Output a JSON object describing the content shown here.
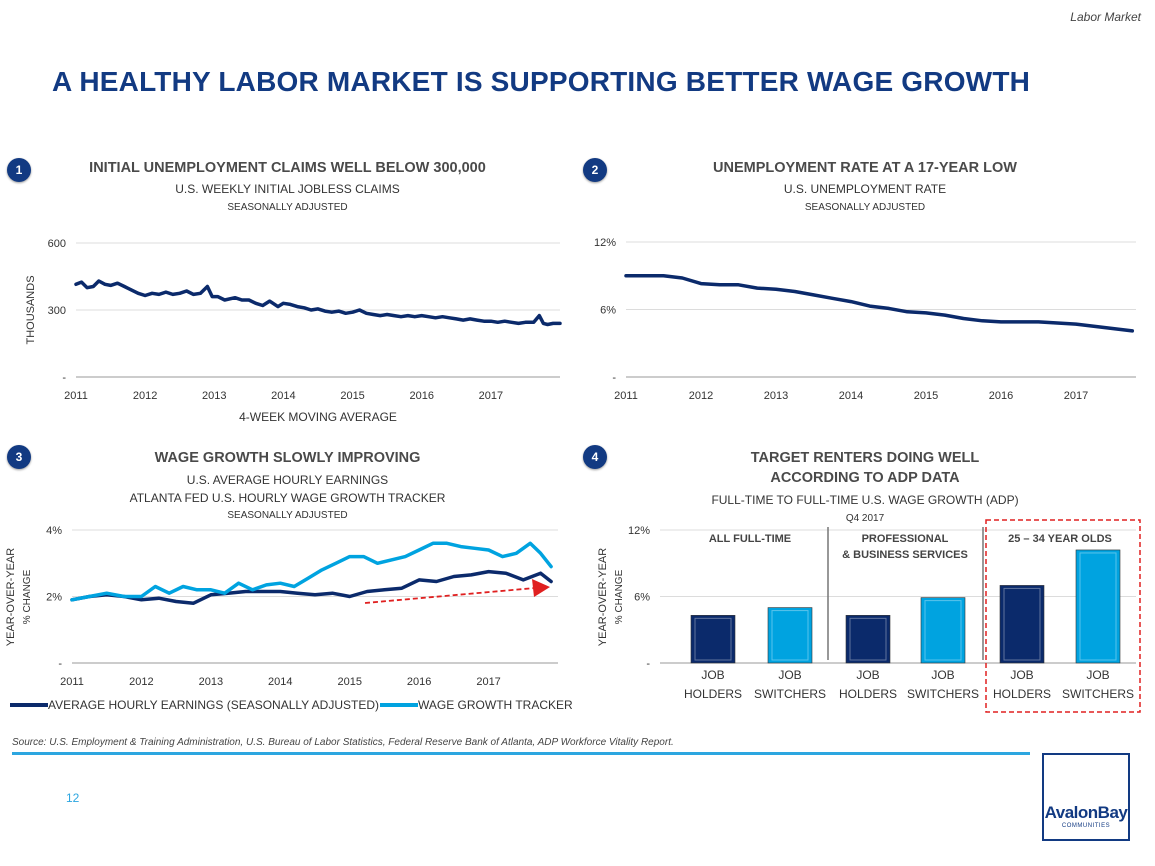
{
  "section_tag": "Labor Market",
  "main_title": "A HEALTHY LABOR MARKET IS SUPPORTING BETTER WAGE GROWTH",
  "panels": [
    {
      "badge": "1",
      "title": "INITIAL UNEMPLOYMENT CLAIMS WELL BELOW 300,000",
      "subtitle": "U.S. WEEKLY INITIAL JOBLESS CLAIMS",
      "subtitle2": "SEASONALLY ADJUSTED"
    },
    {
      "badge": "2",
      "title": "UNEMPLOYMENT RATE AT A 17-YEAR LOW",
      "subtitle": "U.S. UNEMPLOYMENT RATE",
      "subtitle2": "SEASONALLY ADJUSTED"
    },
    {
      "badge": "3",
      "title": "WAGE GROWTH SLOWLY IMPROVING",
      "subtitle": "U.S. AVERAGE HOURLY EARNINGS",
      "subtitle_b": "ATLANTA FED U.S. HOURLY WAGE GROWTH TRACKER",
      "subtitle2": "SEASONALLY ADJUSTED"
    },
    {
      "badge": "4",
      "title": "TARGET RENTERS DOING WELL",
      "title_b": "ACCORDING TO ADP DATA",
      "subtitle": "FULL-TIME TO FULL-TIME U.S. WAGE GROWTH (ADP)",
      "subtitle2": "Q4 2017"
    }
  ],
  "colors": {
    "navy": "#123a82",
    "dark_navy": "#0b2a6b",
    "light_blue": "#00a3e0",
    "accent": "#2ca6e0",
    "red": "#e02020"
  },
  "chart_data": [
    {
      "type": "line",
      "title": "INITIAL UNEMPLOYMENT CLAIMS WELL BELOW 300,000",
      "ylabel": "THOUSANDS",
      "xlabel": "4-WEEK MOVING AVERAGE",
      "xticks": [
        "2011",
        "2012",
        "2013",
        "2014",
        "2015",
        "2016",
        "2017"
      ],
      "yticks": [
        "-",
        "300",
        "600"
      ],
      "ylim": [
        0,
        600
      ],
      "xlim": [
        2011.0,
        2018.0
      ],
      "grid": true,
      "series": [
        {
          "color": "#0b2a6b",
          "x": [
            2011.0,
            2011.08,
            2011.16,
            2011.25,
            2011.33,
            2011.42,
            2011.5,
            2011.6,
            2011.7,
            2011.8,
            2011.9,
            2012.0,
            2012.1,
            2012.2,
            2012.3,
            2012.4,
            2012.5,
            2012.6,
            2012.7,
            2012.8,
            2012.9,
            2012.97,
            2013.05,
            2013.15,
            2013.3,
            2013.4,
            2013.5,
            2013.6,
            2013.7,
            2013.8,
            2013.92,
            2014.0,
            2014.1,
            2014.2,
            2014.3,
            2014.4,
            2014.5,
            2014.6,
            2014.7,
            2014.8,
            2014.9,
            2015.0,
            2015.1,
            2015.2,
            2015.3,
            2015.4,
            2015.5,
            2015.6,
            2015.7,
            2015.8,
            2015.9,
            2016.0,
            2016.1,
            2016.2,
            2016.3,
            2016.4,
            2016.5,
            2016.6,
            2016.7,
            2016.8,
            2016.9,
            2017.0,
            2017.1,
            2017.2,
            2017.3,
            2017.4,
            2017.5,
            2017.62,
            2017.7,
            2017.76,
            2017.82,
            2017.9,
            2018.0
          ],
          "y": [
            415,
            425,
            400,
            405,
            430,
            415,
            410,
            420,
            405,
            390,
            375,
            365,
            375,
            370,
            380,
            370,
            375,
            385,
            370,
            375,
            405,
            360,
            360,
            345,
            355,
            345,
            345,
            330,
            320,
            340,
            315,
            330,
            325,
            315,
            310,
            300,
            305,
            295,
            290,
            295,
            285,
            290,
            300,
            285,
            280,
            275,
            280,
            275,
            270,
            275,
            270,
            275,
            270,
            265,
            270,
            265,
            260,
            255,
            260,
            255,
            250,
            250,
            245,
            250,
            245,
            240,
            245,
            245,
            275,
            240,
            235,
            240,
            240
          ]
        }
      ]
    },
    {
      "type": "line",
      "title": "UNEMPLOYMENT RATE AT A 17-YEAR LOW",
      "xticks": [
        "2011",
        "2012",
        "2013",
        "2014",
        "2015",
        "2016",
        "2017"
      ],
      "yticks": [
        "-",
        "6%",
        "12%"
      ],
      "ylim": [
        0,
        12
      ],
      "xlim": [
        2011.0,
        2017.8
      ],
      "grid": true,
      "series": [
        {
          "color": "#0b2a6b",
          "x": [
            2011.0,
            2011.25,
            2011.5,
            2011.75,
            2012.0,
            2012.25,
            2012.5,
            2012.75,
            2013.0,
            2013.25,
            2013.5,
            2013.75,
            2014.0,
            2014.25,
            2014.5,
            2014.75,
            2015.0,
            2015.25,
            2015.5,
            2015.75,
            2016.0,
            2016.25,
            2016.5,
            2016.75,
            2017.0,
            2017.25,
            2017.5,
            2017.75
          ],
          "y": [
            9.0,
            9.0,
            9.0,
            8.8,
            8.3,
            8.2,
            8.2,
            7.9,
            7.8,
            7.6,
            7.3,
            7.0,
            6.7,
            6.3,
            6.1,
            5.8,
            5.7,
            5.5,
            5.2,
            5.0,
            4.9,
            4.9,
            4.9,
            4.8,
            4.7,
            4.5,
            4.3,
            4.1
          ]
        }
      ]
    },
    {
      "type": "line",
      "title": "WAGE GROWTH SLOWLY IMPROVING",
      "ylabel": "YEAR-OVER-YEAR % CHANGE",
      "xticks": [
        "2011",
        "2012",
        "2013",
        "2014",
        "2015",
        "2016",
        "2017"
      ],
      "yticks": [
        "-",
        "2%",
        "4%"
      ],
      "ylim": [
        0,
        4
      ],
      "xlim": [
        2011.0,
        2018.0
      ],
      "grid": true,
      "legend": "bottom",
      "series": [
        {
          "name": "AVERAGE HOURLY EARNINGS (SEASONALLY ADJUSTED)",
          "color": "#0b2a6b",
          "x": [
            2011.0,
            2011.25,
            2011.5,
            2011.75,
            2012.0,
            2012.25,
            2012.5,
            2012.75,
            2013.0,
            2013.25,
            2013.5,
            2013.75,
            2014.0,
            2014.25,
            2014.5,
            2014.75,
            2015.0,
            2015.25,
            2015.5,
            2015.75,
            2016.0,
            2016.25,
            2016.5,
            2016.75,
            2017.0,
            2017.25,
            2017.5,
            2017.75,
            2017.9
          ],
          "y": [
            1.9,
            2.0,
            2.05,
            2.0,
            1.9,
            1.95,
            1.85,
            1.8,
            2.05,
            2.1,
            2.15,
            2.15,
            2.15,
            2.1,
            2.05,
            2.1,
            2.0,
            2.15,
            2.2,
            2.25,
            2.5,
            2.45,
            2.6,
            2.65,
            2.75,
            2.7,
            2.5,
            2.7,
            2.45
          ]
        },
        {
          "name": "WAGE GROWTH TRACKER",
          "color": "#00a3e0",
          "x": [
            2011.0,
            2011.25,
            2011.5,
            2011.75,
            2012.0,
            2012.2,
            2012.4,
            2012.6,
            2012.8,
            2013.0,
            2013.2,
            2013.4,
            2013.6,
            2013.8,
            2014.0,
            2014.2,
            2014.4,
            2014.6,
            2014.8,
            2015.0,
            2015.2,
            2015.4,
            2015.6,
            2015.8,
            2016.0,
            2016.2,
            2016.4,
            2016.6,
            2016.8,
            2017.0,
            2017.2,
            2017.4,
            2017.6,
            2017.75,
            2017.9
          ],
          "y": [
            1.9,
            2.0,
            2.1,
            2.0,
            2.0,
            2.3,
            2.1,
            2.3,
            2.2,
            2.2,
            2.1,
            2.4,
            2.2,
            2.35,
            2.4,
            2.3,
            2.55,
            2.8,
            3.0,
            3.2,
            3.2,
            3.0,
            3.1,
            3.2,
            3.4,
            3.6,
            3.6,
            3.5,
            3.45,
            3.4,
            3.2,
            3.3,
            3.6,
            3.3,
            2.9
          ]
        }
      ]
    },
    {
      "type": "bar",
      "title": "TARGET RENTERS DOING WELL ACCORDING TO ADP DATA",
      "ylabel": "YEAR-OVER-YEAR % CHANGE",
      "yticks": [
        "-",
        "6%",
        "12%"
      ],
      "ylim": [
        0,
        12
      ],
      "grid": true,
      "groups": [
        "ALL FULL-TIME",
        "PROFESSIONAL\n& BUSINESS SERVICES",
        "25 – 34 YEAR OLDS"
      ],
      "categories": [
        [
          "JOB",
          "HOLDERS"
        ],
        [
          "JOB",
          "SWITCHERS"
        ],
        [
          "JOB",
          "HOLDERS"
        ],
        [
          "JOB",
          "SWITCHERS"
        ],
        [
          "JOB",
          "HOLDERS"
        ],
        [
          "JOB",
          "SWITCHERS"
        ]
      ],
      "values": [
        4.3,
        5.0,
        4.3,
        5.9,
        7.0,
        10.2
      ],
      "bar_colors": [
        "#0b2a6b",
        "#00a3e0",
        "#0b2a6b",
        "#00a3e0",
        "#0b2a6b",
        "#00a3e0"
      ]
    }
  ],
  "source": "Source:  U.S. Employment & Training Administration, U.S. Bureau of Labor Statistics, Federal Reserve Bank of Atlanta, ADP Workforce Vitality Report.",
  "page_number": "12",
  "logo": {
    "name": "AvalonBay",
    "sub": "COMMUNITIES"
  }
}
